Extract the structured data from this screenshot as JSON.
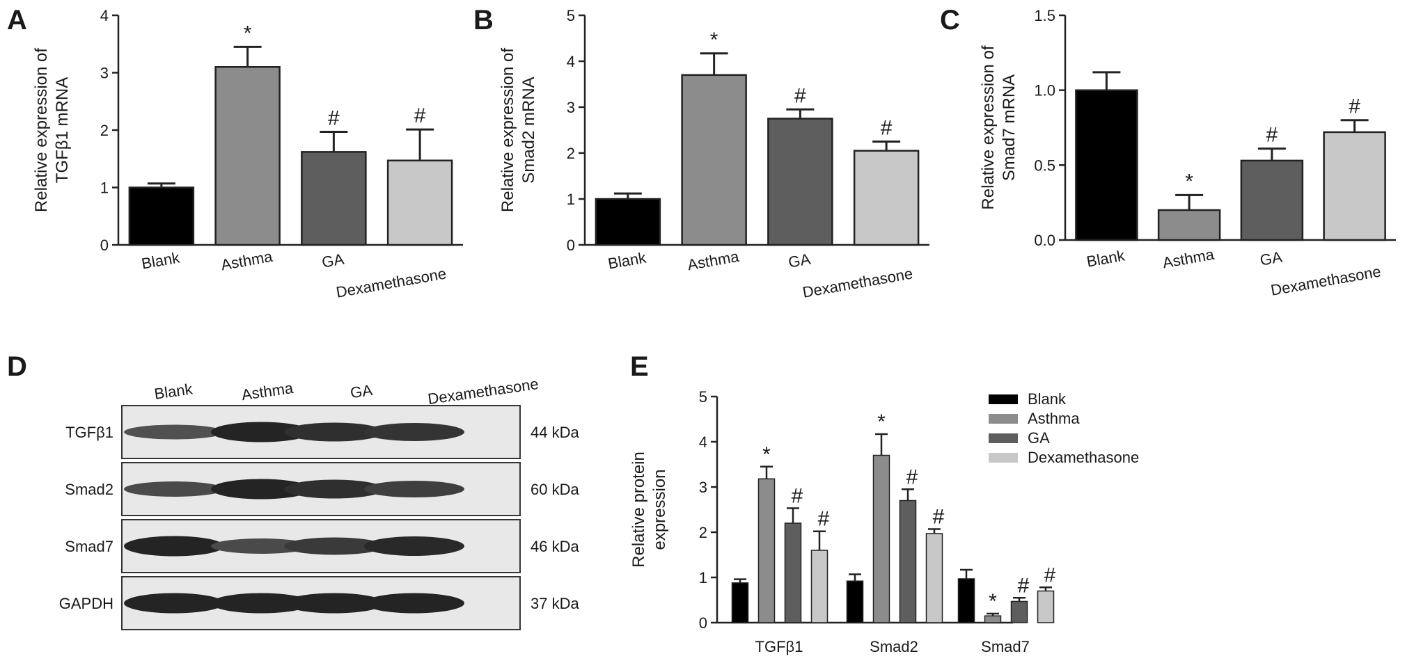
{
  "panels": {
    "A": "A",
    "B": "B",
    "C": "C",
    "D": "D",
    "E": "E"
  },
  "chart_data": [
    {
      "panel": "A",
      "type": "bar",
      "categories": [
        "Blank",
        "Asthma",
        "GA",
        "Dexamethasone"
      ],
      "values": [
        1.0,
        3.1,
        1.62,
        1.47
      ],
      "errors": [
        0.07,
        0.35,
        0.35,
        0.54
      ],
      "markers": [
        "",
        "*",
        "#",
        "#"
      ],
      "colors": [
        "#000000",
        "#8c8c8c",
        "#5e5e5e",
        "#c8c8c8"
      ],
      "ylabel_lines": [
        "Relative expression of",
        "TGFβ1 mRNA"
      ],
      "ylim": [
        0,
        4
      ],
      "yticks": [
        0,
        1,
        2,
        3,
        4
      ],
      "ytick_labels": [
        "0",
        "1",
        "2",
        "3",
        "4"
      ]
    },
    {
      "panel": "B",
      "type": "bar",
      "categories": [
        "Blank",
        "Asthma",
        "GA",
        "Dexamethasone"
      ],
      "values": [
        1.0,
        3.7,
        2.75,
        2.05
      ],
      "errors": [
        0.12,
        0.47,
        0.2,
        0.2
      ],
      "markers": [
        "",
        "*",
        "#",
        "#"
      ],
      "colors": [
        "#000000",
        "#8c8c8c",
        "#5e5e5e",
        "#c8c8c8"
      ],
      "ylabel_lines": [
        "Relative expression of",
        "Smad2 mRNA"
      ],
      "ylim": [
        0,
        5
      ],
      "yticks": [
        0,
        1,
        2,
        3,
        4,
        5
      ],
      "ytick_labels": [
        "0",
        "1",
        "2",
        "3",
        "4",
        "5"
      ]
    },
    {
      "panel": "C",
      "type": "bar",
      "categories": [
        "Blank",
        "Asthma",
        "GA",
        "Dexamethasone"
      ],
      "values": [
        1.0,
        0.2,
        0.53,
        0.72
      ],
      "errors": [
        0.12,
        0.1,
        0.08,
        0.08
      ],
      "markers": [
        "",
        "*",
        "#",
        "#"
      ],
      "colors": [
        "#000000",
        "#8c8c8c",
        "#5e5e5e",
        "#c8c8c8"
      ],
      "ylabel_lines": [
        "Relative expression of",
        "Smad7 mRNA"
      ],
      "ylim": [
        0,
        1.5
      ],
      "yticks": [
        0,
        0.5,
        1.0,
        1.5
      ],
      "ytick_labels": [
        "0.0",
        "0.5",
        "1.0",
        "1.5"
      ]
    },
    {
      "panel": "E",
      "type": "bar",
      "categories": [
        "TGFβ1",
        "Smad2",
        "Smad7"
      ],
      "series": [
        {
          "name": "Blank",
          "values": [
            0.88,
            0.92,
            0.97
          ],
          "errors": [
            0.08,
            0.15,
            0.2
          ],
          "markers": [
            "",
            "",
            ""
          ]
        },
        {
          "name": "Asthma",
          "values": [
            3.18,
            3.7,
            0.15
          ],
          "errors": [
            0.27,
            0.47,
            0.05
          ],
          "markers": [
            "*",
            "*",
            "*"
          ]
        },
        {
          "name": "GA",
          "values": [
            2.2,
            2.7,
            0.47
          ],
          "errors": [
            0.33,
            0.25,
            0.08
          ],
          "markers": [
            "#",
            "#",
            "#"
          ]
        },
        {
          "name": "Dexamethasone",
          "values": [
            1.6,
            1.97,
            0.7
          ],
          "errors": [
            0.42,
            0.1,
            0.08
          ],
          "markers": [
            "#",
            "#",
            "#"
          ]
        }
      ],
      "colors": [
        "#000000",
        "#8c8c8c",
        "#5e5e5e",
        "#c8c8c8"
      ],
      "ylabel_lines": [
        "Relative protein",
        "expression"
      ],
      "ylim": [
        0,
        5
      ],
      "yticks": [
        0,
        1,
        2,
        3,
        4,
        5
      ],
      "ytick_labels": [
        "0",
        "1",
        "2",
        "3",
        "4",
        "5"
      ],
      "legend": "top-right"
    }
  ],
  "blot": {
    "columns": [
      "Blank",
      "Asthma",
      "GA",
      "Dexamethasone"
    ],
    "rows": [
      {
        "protein": "TGFβ1",
        "size": "44 kDa",
        "intensity": [
          0.55,
          0.95,
          0.85,
          0.8
        ]
      },
      {
        "protein": "Smad2",
        "size": "60 kDa",
        "intensity": [
          0.6,
          0.95,
          0.85,
          0.7
        ]
      },
      {
        "protein": "Smad7",
        "size": "46 kDa",
        "intensity": [
          0.95,
          0.6,
          0.75,
          0.9
        ]
      },
      {
        "protein": "GAPDH",
        "size": "37 kDa",
        "intensity": [
          0.95,
          0.95,
          0.95,
          0.95
        ]
      }
    ]
  }
}
